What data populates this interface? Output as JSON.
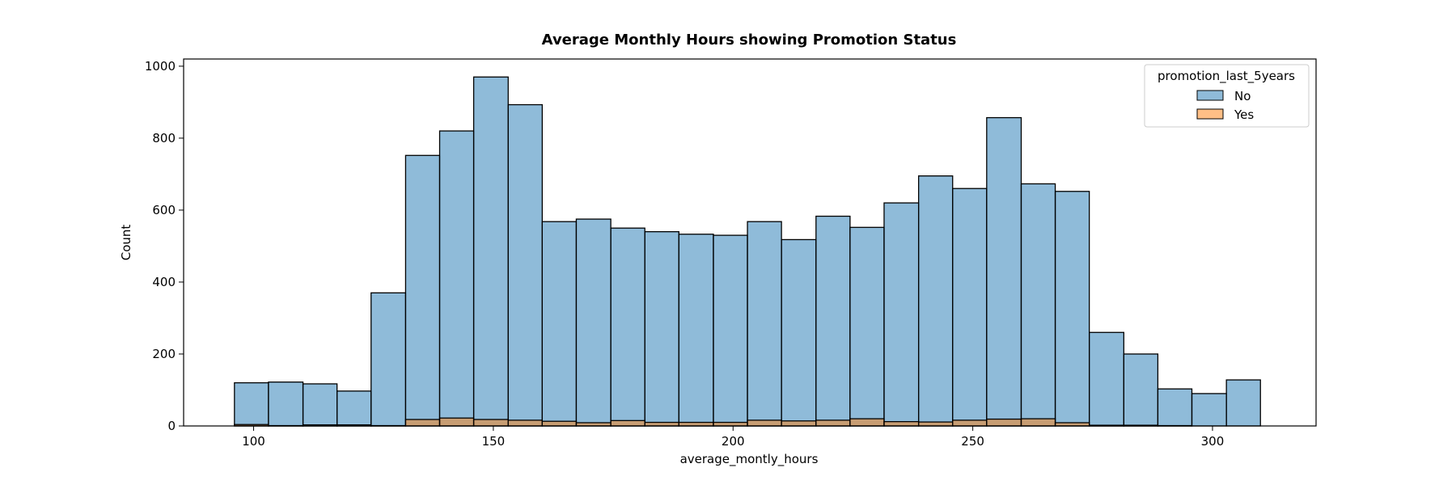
{
  "chart_data": {
    "type": "bar",
    "title": "Average Monthly Hours showing Promotion Status",
    "xlabel": "average_montly_hours",
    "ylabel": "Count",
    "xlim": [
      85.4,
      321.6
    ],
    "ylim": [
      0,
      1020
    ],
    "xticks": [
      100,
      150,
      200,
      250,
      300
    ],
    "yticks": [
      0,
      200,
      400,
      600,
      800,
      1000
    ],
    "bin_edges": [
      96,
      103.1,
      110.3,
      117.4,
      124.5,
      131.7,
      138.8,
      145.9,
      153.1,
      160.2,
      167.3,
      174.5,
      181.6,
      188.7,
      195.9,
      203,
      210.1,
      217.3,
      224.4,
      231.5,
      238.7,
      245.8,
      252.9,
      260.1,
      267.2,
      274.3,
      281.5,
      288.6,
      295.7,
      302.9,
      310
    ],
    "series": [
      {
        "name": "No",
        "color": "#1f77b4",
        "values": [
          120,
          122,
          117,
          97,
          370,
          752,
          820,
          970,
          893,
          568,
          575,
          550,
          540,
          533,
          530,
          568,
          518,
          583,
          552,
          620,
          695,
          660,
          857,
          673,
          652,
          260,
          200,
          103,
          90,
          128
        ]
      },
      {
        "name": "Yes",
        "color": "#ff7f0e",
        "values": [
          4,
          1,
          3,
          3,
          1,
          18,
          22,
          18,
          16,
          13,
          9,
          15,
          10,
          10,
          10,
          16,
          14,
          16,
          20,
          12,
          11,
          16,
          19,
          20,
          9,
          2,
          2,
          1,
          0,
          0
        ]
      }
    ],
    "legend": {
      "title": "promotion_last_5years",
      "position": "top-right",
      "entries": [
        "No",
        "Yes"
      ]
    },
    "grid": false
  }
}
